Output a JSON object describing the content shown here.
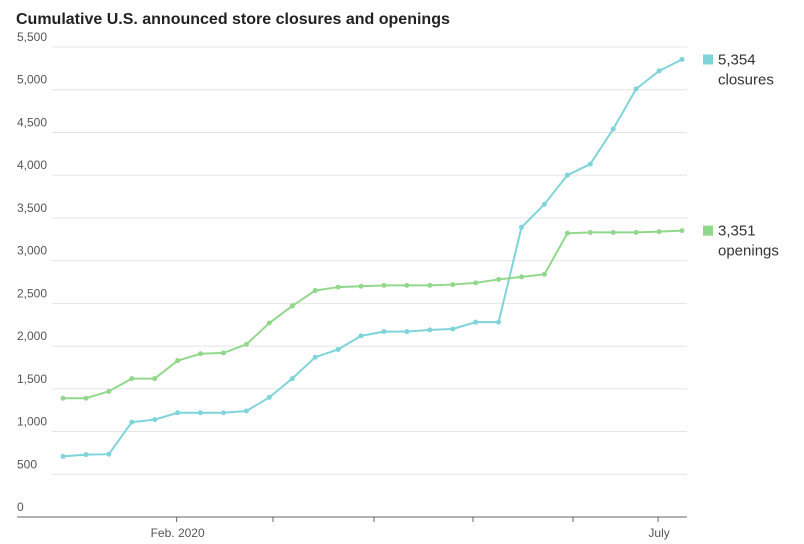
{
  "chart_data": {
    "type": "line",
    "title": "Cumulative U.S. announced store closures and openings",
    "categories": [
      null,
      null,
      null,
      null,
      null,
      "Feb. 2020",
      null,
      null,
      null,
      null,
      null,
      null,
      null,
      null,
      null,
      null,
      null,
      null,
      null,
      null,
      null,
      null,
      null,
      null,
      null,
      null,
      "July",
      null
    ],
    "series": [
      {
        "name": "closures",
        "color": "#7fd4da",
        "values": [
          710,
          730,
          735,
          1110,
          1140,
          1220,
          1220,
          1220,
          1240,
          1400,
          1620,
          1870,
          1960,
          2120,
          2170,
          2170,
          2190,
          2200,
          2280,
          2280,
          3390,
          3660,
          4000,
          4130,
          4540,
          5010,
          5220,
          5354
        ],
        "value_labels": [
          null,
          null,
          null,
          null,
          null,
          null,
          null,
          null,
          null,
          null,
          null,
          null,
          null,
          null,
          null,
          null,
          null,
          null,
          null,
          null,
          null,
          null,
          null,
          null,
          null,
          null,
          null,
          "5,354"
        ]
      },
      {
        "name": "openings",
        "color": "#92d88c",
        "values": [
          1390,
          1390,
          1470,
          1620,
          1620,
          1830,
          1910,
          1920,
          2020,
          2270,
          2470,
          2650,
          2690,
          2700,
          2710,
          2710,
          2710,
          2720,
          2740,
          2780,
          2810,
          2840,
          3320,
          3330,
          3330,
          3330,
          3340,
          3351
        ],
        "value_labels": [
          null,
          null,
          null,
          null,
          null,
          null,
          null,
          null,
          null,
          null,
          null,
          null,
          null,
          null,
          null,
          null,
          null,
          null,
          null,
          null,
          null,
          null,
          null,
          null,
          null,
          null,
          null,
          "3,351"
        ]
      }
    ],
    "ylim": [
      0,
      5500
    ],
    "yticks": [
      {
        "value": 0,
        "label": "0"
      },
      {
        "value": 500,
        "label": "500"
      },
      {
        "value": 1000,
        "label": "1,000"
      },
      {
        "value": 1500,
        "label": "1,500"
      },
      {
        "value": 2000,
        "label": "2,000"
      },
      {
        "value": 2500,
        "label": "2,500"
      },
      {
        "value": 3000,
        "label": "3,000"
      },
      {
        "value": 3500,
        "label": "3,500"
      },
      {
        "value": 4000,
        "label": "4,000"
      },
      {
        "value": 4500,
        "label": "4,500"
      },
      {
        "value": 5000,
        "label": "5,000"
      },
      {
        "value": 5500,
        "label": "5,500"
      }
    ],
    "grid": true
  }
}
